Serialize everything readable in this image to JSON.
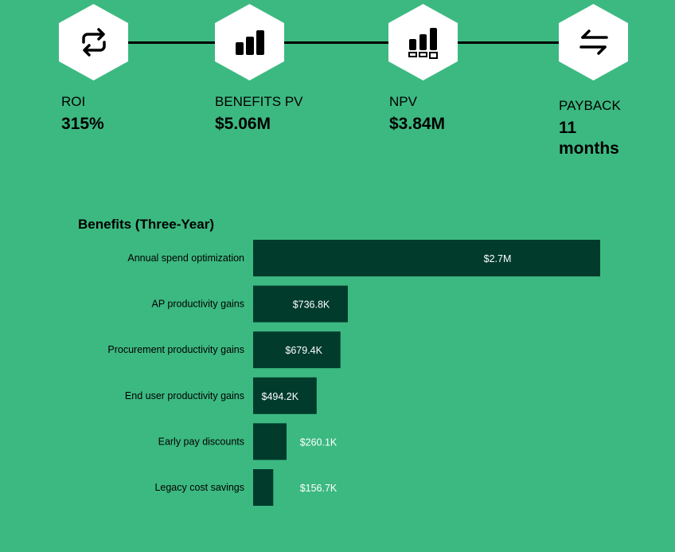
{
  "kpis": [
    {
      "label": "ROI",
      "value": "315%",
      "icon": "repeat-icon"
    },
    {
      "label": "BENEFITS PV",
      "value": "$5.06M",
      "icon": "bar-chart-icon"
    },
    {
      "label": "NPV",
      "value": "$3.84M",
      "icon": "bar-chart-boxes-icon"
    },
    {
      "label": "PAYBACK",
      "value": "11 months",
      "icon": "swap-arrows-icon"
    }
  ],
  "colors": {
    "background": "#3cb981",
    "bar": "#003b2c",
    "hex": "#ffffff"
  },
  "chart_data": {
    "type": "bar",
    "orientation": "horizontal",
    "title": "Benefits (Three-Year)",
    "categories": [
      "Annual spend optimization",
      "AP productivity gains",
      "Procurement productivity gains",
      "End user productivity gains",
      "Early pay discounts",
      "Legacy cost savings"
    ],
    "values": [
      2700000,
      736800,
      679400,
      494200,
      260100,
      156700
    ],
    "data_labels": [
      "$2.7M",
      "$736.8K",
      "$679.4K",
      "$494.2K",
      "$260.1K",
      "$156.7K"
    ],
    "xlim": [
      0,
      2700000
    ],
    "grid": false,
    "legend": "none"
  }
}
